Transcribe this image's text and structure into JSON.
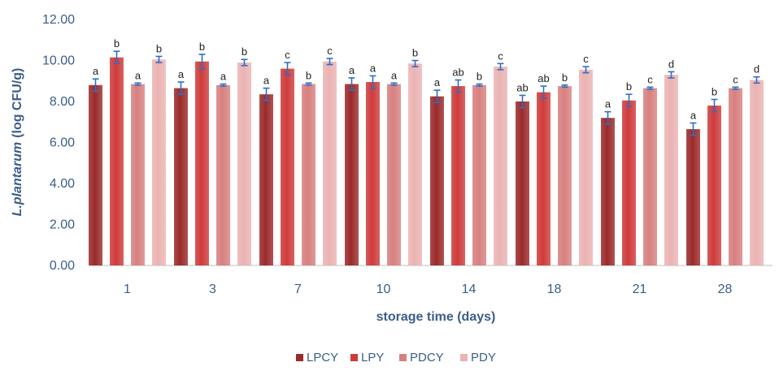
{
  "chart_data": {
    "type": "bar",
    "title": "",
    "xlabel": "storage time (days)",
    "ylabel_italic": "L.plantarum",
    "ylabel_rest": "(log CFU/g)",
    "ylim": [
      0,
      12
    ],
    "yticks": [
      "0.00",
      "2.00",
      "4.00",
      "6.00",
      "8.00",
      "10.00",
      "12.00"
    ],
    "categories": [
      "1",
      "3",
      "7",
      "10",
      "14",
      "18",
      "21",
      "28"
    ],
    "legend_position": "bottom",
    "grid": false,
    "series": [
      {
        "name": "LPCY",
        "color": "#9b2a2a",
        "values": [
          8.8,
          8.65,
          8.35,
          8.85,
          8.25,
          8.0,
          7.2,
          6.65
        ],
        "errors": [
          0.3,
          0.3,
          0.3,
          0.3,
          0.3,
          0.3,
          0.3,
          0.3
        ],
        "letters": [
          "a",
          "a",
          "a",
          "a",
          "a",
          "ab",
          "a",
          "a"
        ]
      },
      {
        "name": "LPY",
        "color": "#cf3b3b",
        "values": [
          10.15,
          9.95,
          9.6,
          8.95,
          8.75,
          8.45,
          8.05,
          7.8
        ],
        "errors": [
          0.3,
          0.35,
          0.3,
          0.3,
          0.3,
          0.3,
          0.3,
          0.3
        ],
        "letters": [
          "b",
          "b",
          "c",
          "a",
          "ab",
          "ab",
          "b",
          "b"
        ]
      },
      {
        "name": "PDCY",
        "color": "#d88080",
        "values": [
          8.85,
          8.8,
          8.85,
          8.85,
          8.8,
          8.75,
          8.65,
          8.65
        ],
        "errors": [
          0.05,
          0.05,
          0.05,
          0.05,
          0.05,
          0.05,
          0.05,
          0.05
        ],
        "letters": [
          "a",
          "a",
          "b",
          "a",
          "b",
          "b",
          "c",
          "c"
        ]
      },
      {
        "name": "PDY",
        "color": "#ebb3b3",
        "values": [
          10.05,
          9.9,
          9.95,
          9.85,
          9.7,
          9.55,
          9.3,
          9.05
        ],
        "errors": [
          0.15,
          0.15,
          0.15,
          0.15,
          0.15,
          0.15,
          0.15,
          0.15
        ],
        "letters": [
          "b",
          "b",
          "c",
          "b",
          "c",
          "c",
          "d",
          "d"
        ]
      }
    ]
  }
}
